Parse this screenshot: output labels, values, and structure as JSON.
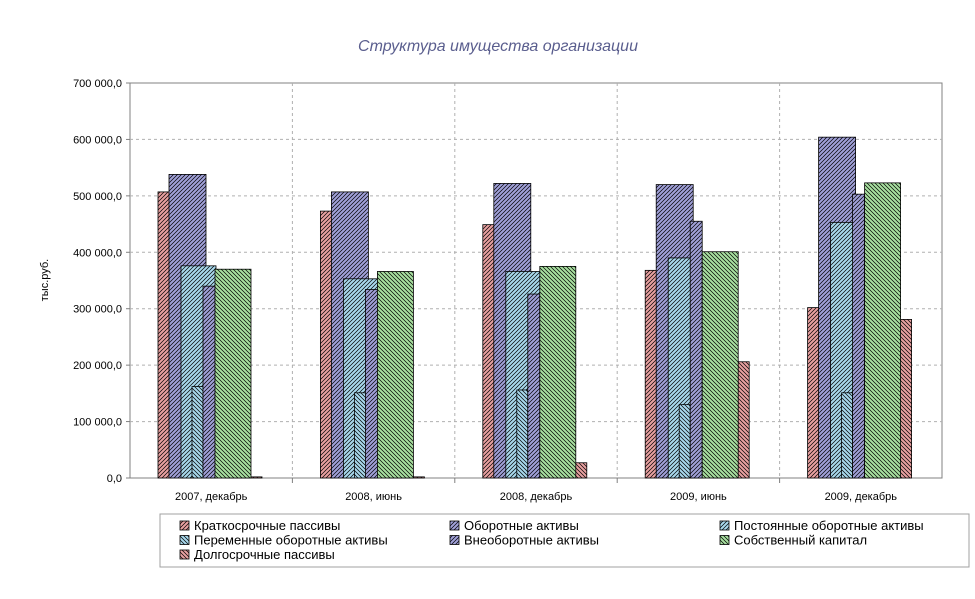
{
  "chart_data": {
    "type": "bar",
    "title": "Структура имущества организации",
    "ylabel": "тыс.руб.",
    "xlabel": "",
    "ylim": [
      0,
      700000
    ],
    "yticks": [
      0,
      100000,
      200000,
      300000,
      400000,
      500000,
      600000,
      700000
    ],
    "ytick_labels": [
      "0,0",
      "100 000,0",
      "200 000,0",
      "300 000,0",
      "400 000,0",
      "500 000,0",
      "600 000,0",
      "700 000,0"
    ],
    "grid": true,
    "legend_position": "bottom",
    "categories": [
      "2007, декабрь",
      "2008, июнь",
      "2008, декабрь",
      "2009, июнь",
      "2009, декабрь"
    ],
    "series": [
      {
        "name": "Краткосрочные пассивы",
        "color": "#e8a0a0",
        "values": [
          507000,
          473000,
          449000,
          368000,
          302000
        ]
      },
      {
        "name": "Оборотные активы",
        "color": "#a0a0d8",
        "values": [
          538000,
          507000,
          522000,
          520000,
          604000
        ]
      },
      {
        "name": "Постоянные оборотные активы",
        "color": "#a8d8ec",
        "values": [
          376000,
          353000,
          366000,
          390000,
          453000
        ]
      },
      {
        "name": "Переменные оборотные активы",
        "color": "#a8d8ec",
        "values": [
          162000,
          151000,
          156000,
          130000,
          151000
        ]
      },
      {
        "name": "Внеоборотные активы",
        "color": "#a0a0d8",
        "values": [
          340000,
          334000,
          326000,
          455000,
          503000
        ]
      },
      {
        "name": "Собственный капитал",
        "color": "#a8e0a0",
        "values": [
          370000,
          366000,
          375000,
          401000,
          523000
        ]
      },
      {
        "name": "Долгосрочные пассивы",
        "color": "#e8a0a0",
        "values": [
          2000,
          2000,
          27000,
          206000,
          281000
        ]
      }
    ]
  }
}
